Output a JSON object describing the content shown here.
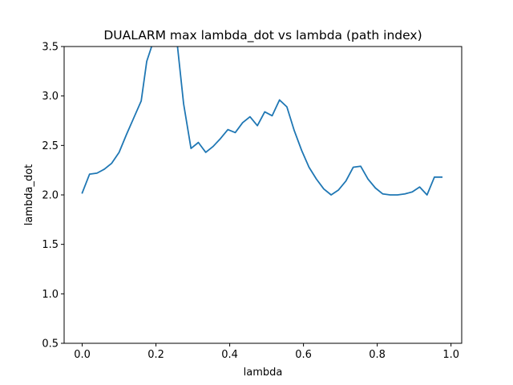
{
  "chart_data": {
    "type": "line",
    "title": "DUALARM max lambda_dot vs lambda (path index)",
    "xlabel": "lambda",
    "ylabel": "lambda_dot",
    "xlim": [
      -0.049,
      1.029
    ],
    "ylim": [
      0.5,
      3.5
    ],
    "xticks": [
      0.0,
      0.2,
      0.4,
      0.6,
      0.8,
      1.0
    ],
    "xtick_labels": [
      "0.0",
      "0.2",
      "0.4",
      "0.6",
      "0.8",
      "1.0"
    ],
    "yticks": [
      0.5,
      1.0,
      1.5,
      2.0,
      2.5,
      3.0,
      3.5
    ],
    "ytick_labels": [
      "0.5",
      "1.0",
      "1.5",
      "2.0",
      "2.5",
      "3.0",
      "3.5"
    ],
    "grid": false,
    "legend": "none",
    "line_color": "#1f77b4",
    "series": [
      {
        "x": [
          0.0,
          0.02,
          0.04,
          0.06,
          0.08,
          0.1,
          0.12,
          0.14,
          0.16,
          0.175,
          0.19,
          0.2,
          0.255,
          0.275,
          0.295,
          0.315,
          0.335,
          0.355,
          0.375,
          0.395,
          0.415,
          0.435,
          0.455,
          0.475,
          0.495,
          0.515,
          0.535,
          0.555,
          0.575,
          0.595,
          0.615,
          0.635,
          0.655,
          0.675,
          0.695,
          0.715,
          0.735,
          0.755,
          0.775,
          0.795,
          0.815,
          0.835,
          0.855,
          0.875,
          0.895,
          0.915,
          0.935,
          0.955,
          0.975
        ],
        "y": [
          2.02,
          2.21,
          2.22,
          2.26,
          2.32,
          2.43,
          2.61,
          2.78,
          2.95,
          3.35,
          3.52,
          3.62,
          3.62,
          2.92,
          2.47,
          2.53,
          2.43,
          2.49,
          2.57,
          2.66,
          2.63,
          2.73,
          2.79,
          2.7,
          2.84,
          2.8,
          2.96,
          2.89,
          2.65,
          2.45,
          2.28,
          2.16,
          2.06,
          2.0,
          2.05,
          2.14,
          2.28,
          2.29,
          2.16,
          2.07,
          2.01,
          2.0,
          2.0,
          2.01,
          2.03,
          2.08,
          2.0,
          2.18,
          2.18
        ]
      }
    ]
  }
}
